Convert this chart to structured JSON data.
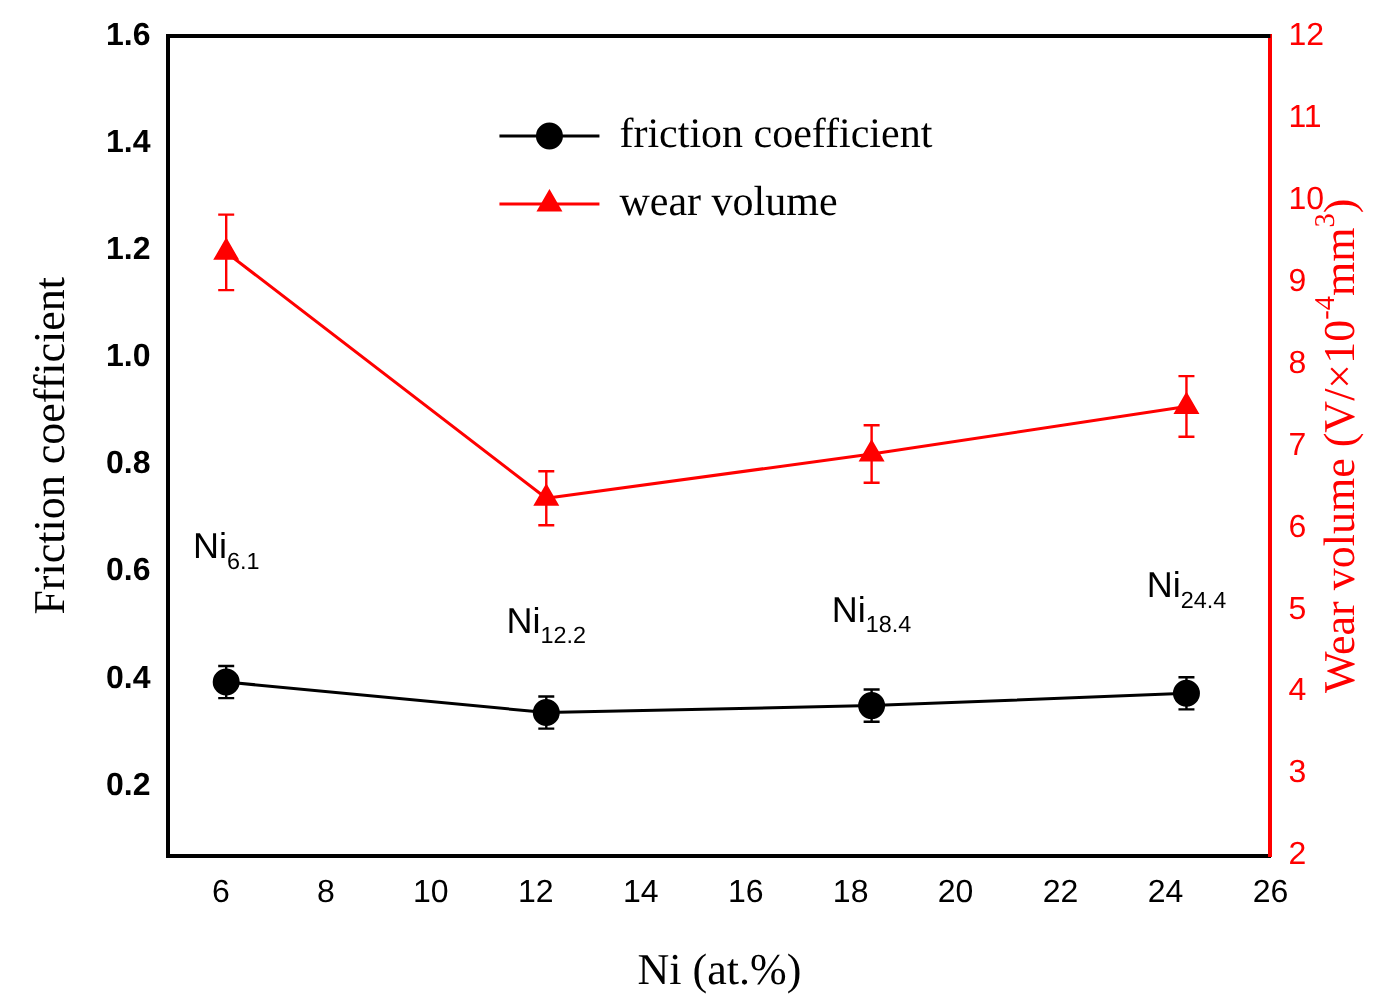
{
  "chart_data": {
    "type": "line",
    "xlabel": "Ni (at.%)",
    "ylabel": "Friction coefficient",
    "y2label": "Wear volume (V/×10$^{-4}$mm$^{3}$)",
    "xlim": [
      5,
      26
    ],
    "xticks": [
      6,
      8,
      10,
      12,
      14,
      16,
      18,
      20,
      22,
      24,
      26
    ],
    "ylim": [
      0.07,
      1.6
    ],
    "yticks": [
      0.2,
      0.4,
      0.6,
      0.8,
      {
        "value": 1,
        "label": "1.0"
      },
      1.2,
      1.4,
      1.6
    ],
    "y2lim": [
      2,
      12
    ],
    "y2ticks": [
      2,
      3,
      4,
      5,
      6,
      7,
      8,
      9,
      10,
      11,
      12
    ],
    "legend": "top",
    "grid": false,
    "series": [
      {
        "name": "friction coefficient",
        "color": "#000000",
        "marker": "circle",
        "x": [
          6.1,
          12.2,
          18.4,
          24.4
        ],
        "values": [
          0.394,
          0.337,
          0.35,
          0.373
        ],
        "errors": [
          0.03,
          0.03,
          0.03,
          0.03
        ]
      },
      {
        "name": "wear volume",
        "color": "#ff0000",
        "marker": "triangle",
        "axis": "y2",
        "x": [
          6.1,
          12.2,
          18.4,
          24.4
        ],
        "values": [
          9.36,
          6.36,
          6.9,
          7.48
        ],
        "errors": [
          0.46,
          0.33,
          0.35,
          0.37
        ]
      }
    ],
    "annotations": [
      "Ni$_{6.1}$",
      "Ni$_{12.2}$",
      "Ni$_{18.4}$",
      "Ni$_{24.4}$"
    ]
  }
}
